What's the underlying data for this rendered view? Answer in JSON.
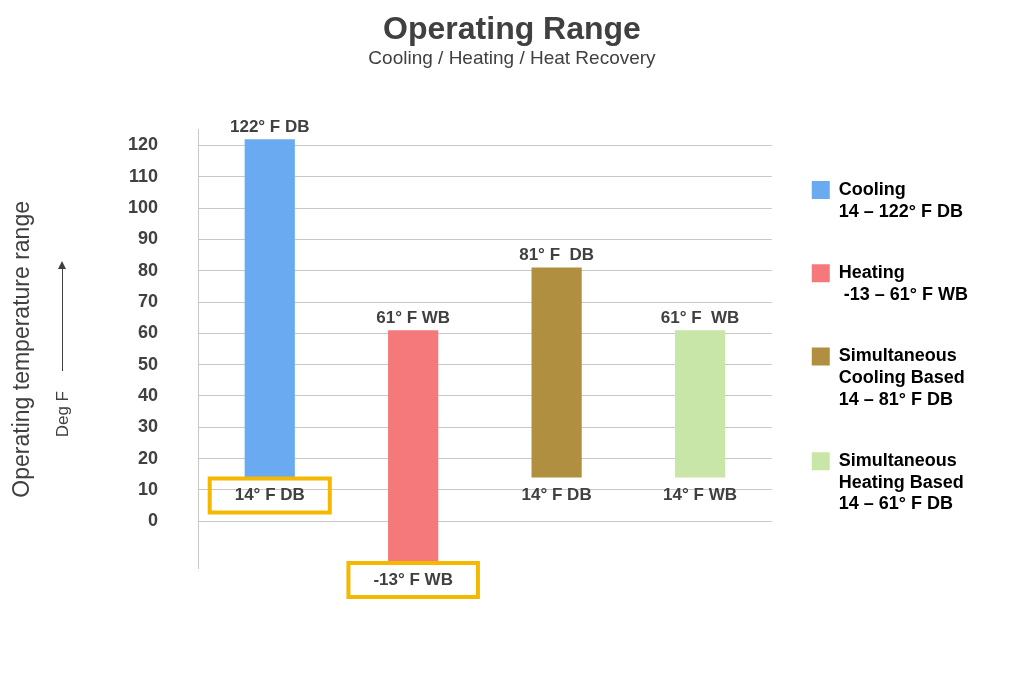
{
  "chart_data": {
    "type": "bar",
    "title": "Operating Range",
    "subtitle": "Cooling / Heating / Heat Recovery",
    "ylabel": "Operating temperature range",
    "categories": [
      null,
      null,
      null,
      null
    ],
    "series": [
      {
        "name": "Cooling\n14 – 122° F DB",
        "color": "#6aaaf0",
        "values": [
          108,
          null,
          null,
          null
        ],
        "base": [
          14,
          null,
          null,
          null
        ]
      },
      {
        "name": "Heating\n -13 – 61° F WB",
        "color": "#f5787a",
        "values": [
          null,
          74,
          null,
          null
        ],
        "base": [
          null,
          -13,
          null,
          null
        ]
      },
      {
        "name": "Simultaneous\nCooling Based\n14 – 81° F DB",
        "color": "#b09040",
        "values": [
          null,
          null,
          67,
          null
        ],
        "base": [
          null,
          null,
          14,
          null
        ]
      },
      {
        "name": "Simultaneous\nHeating Based\n14 – 61° F DB",
        "color": "#c8e6a8",
        "values": [
          null,
          null,
          null,
          47
        ],
        "base": [
          null,
          null,
          null,
          14
        ]
      }
    ],
    "ylim": [
      -15,
      125
    ],
    "yticks": [
      0,
      10,
      20,
      30,
      40,
      50,
      60,
      70,
      80,
      90,
      100,
      110,
      120
    ],
    "grid": "y",
    "tick_labels": "y",
    "legend": "right",
    "annotations": [
      "Deg F",
      {
        "text": "122° F DB",
        "y": 122
      },
      {
        "text": "14° F DB",
        "y": 14
      },
      {
        "text": "61° F WB",
        "y": 61
      },
      {
        "text": "-13° F WB",
        "y": -13
      },
      {
        "text": "81° F  DB",
        "y": 81
      },
      {
        "text": "14° F DB",
        "y": 14
      },
      {
        "text": "61° F  WB",
        "y": 61
      },
      {
        "text": "14° F WB",
        "y": 14
      }
    ]
  }
}
